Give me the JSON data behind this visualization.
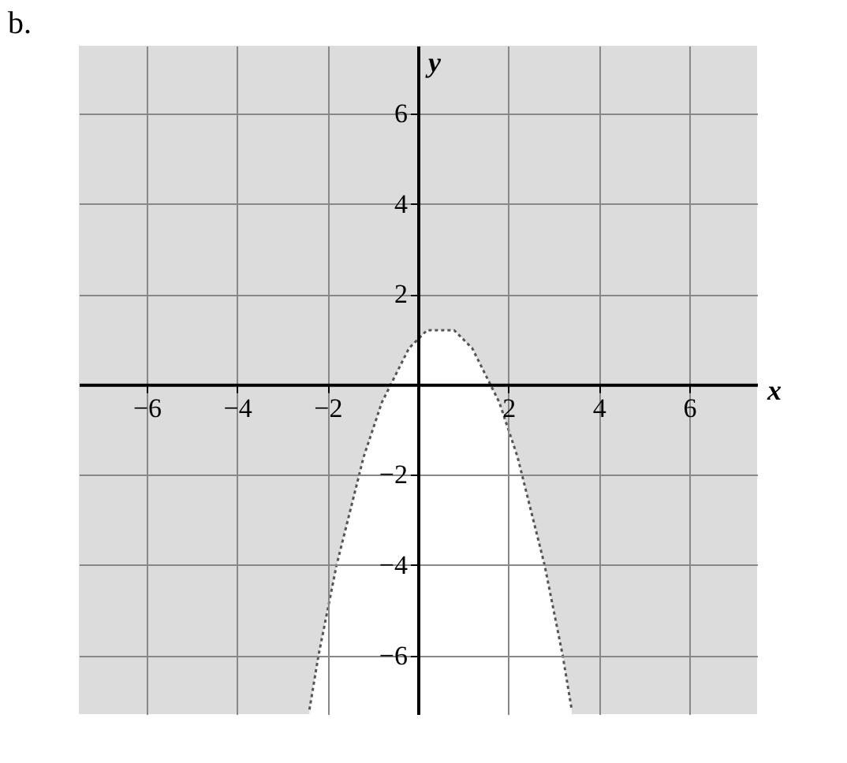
{
  "chart_data": {
    "type": "line",
    "title": "b.",
    "xlabel": "x",
    "ylabel": "y",
    "x": [
      -2.4,
      -2.2,
      -2.0,
      -1.8,
      -1.6,
      -1.4,
      -1.2,
      -1.0,
      -0.8,
      -0.6,
      -0.4,
      -0.2,
      0,
      0.2,
      0.4,
      0.6,
      0.8,
      1.0,
      1.2,
      1.4,
      1.6,
      1.8,
      2.0,
      2.2,
      2.4,
      2.6,
      2.8,
      3.0,
      3.2,
      3.4
    ],
    "series": [
      {
        "color": "#555555",
        "line_style": "dotted",
        "values": [
          -7.2,
          -6.0,
          -5.0,
          -4.0,
          -3.2,
          -2.4,
          -1.6,
          -1.0,
          -0.4,
          0.0,
          0.4,
          0.8,
          1.0,
          1.2,
          1.2,
          1.2,
          1.2,
          1.0,
          0.8,
          0.4,
          0.0,
          -0.4,
          -1.0,
          -1.6,
          -2.4,
          -3.2,
          -4.0,
          -5.0,
          -6.0,
          -7.2
        ],
        "lower": [
          -7.3,
          -7.3,
          -7.3,
          -7.3,
          -7.3,
          -7.3,
          -7.3,
          -7.3,
          -7.3,
          -7.3,
          -7.3,
          -7.3,
          -7.3,
          -7.3,
          -7.3,
          -7.3,
          -7.3,
          -7.3,
          -7.3,
          -7.3,
          -7.3,
          -7.3,
          -7.3,
          -7.3,
          -7.3,
          -7.3,
          -7.3,
          -7.3,
          -7.3,
          -7.3
        ],
        "upper": [
          -7.2,
          -6.0,
          -5.0,
          -4.0,
          -3.2,
          -2.4,
          -1.6,
          -1.0,
          -0.4,
          0.0,
          0.4,
          0.8,
          1.0,
          1.2,
          1.2,
          1.2,
          1.2,
          1.0,
          0.8,
          0.4,
          0.0,
          -0.4,
          -1.0,
          -1.6,
          -2.4,
          -3.2,
          -4.0,
          -5.0,
          -6.0,
          -7.2
        ]
      }
    ],
    "xlim": [
      -7.5,
      7.5
    ],
    "ylim": [
      -7.3,
      7.5
    ],
    "xticks": [
      -6,
      -4,
      -2,
      2,
      4,
      6
    ],
    "yticks": [
      -6,
      -4,
      -2,
      2,
      4,
      6
    ],
    "grid": true
  }
}
